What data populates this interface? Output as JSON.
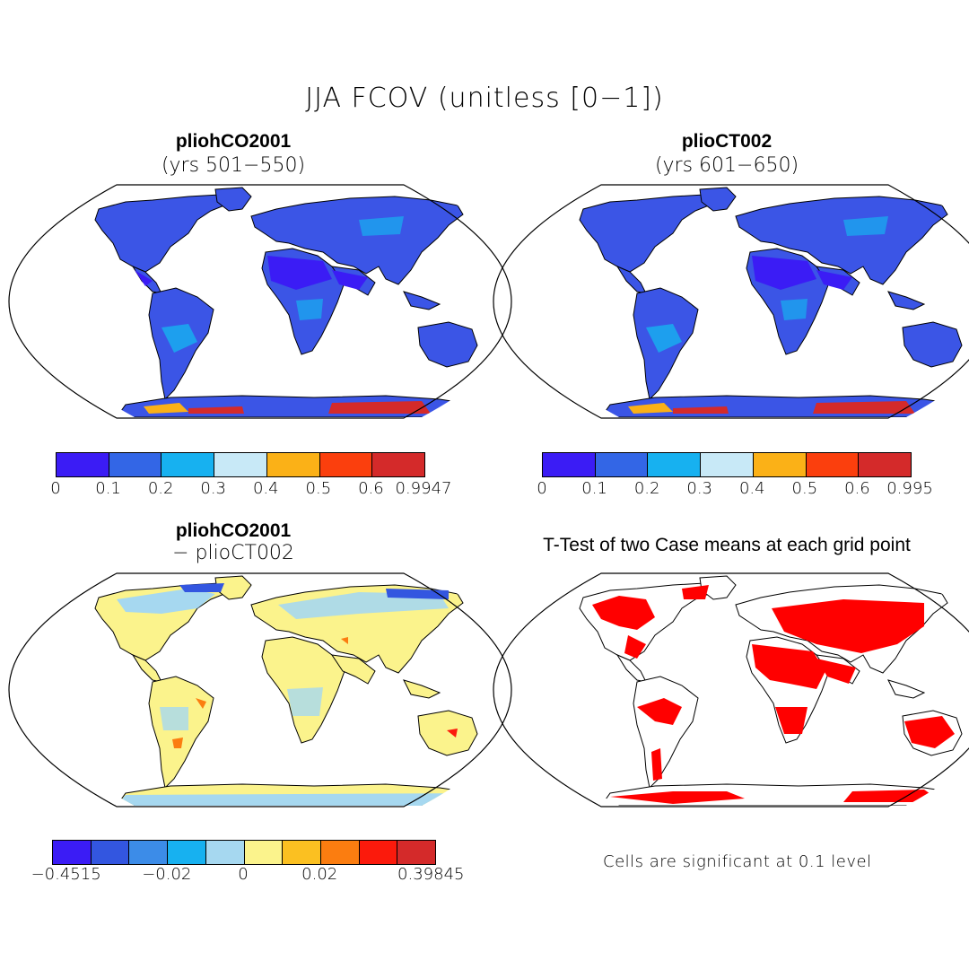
{
  "figure": {
    "title": "JJA FCOV (unitless [0−1])"
  },
  "panels": {
    "top_left": {
      "title": "pliohCO2001",
      "subtitle": "(yrs 501−550)"
    },
    "top_right": {
      "title": "plioCT002",
      "subtitle": "(yrs 601−650)"
    },
    "bottom_left": {
      "title": "pliohCO2001",
      "subtitle": "− plioCT002"
    },
    "bottom_right": {
      "title": "T-Test of two Case means at each grid point"
    }
  },
  "colorbars": {
    "top_left": {
      "colors": [
        "#3b1cf5",
        "#3366e6",
        "#17b1f0",
        "#c8e9f7",
        "#fbb117",
        "#fb3f0d",
        "#d42a2a"
      ],
      "labels": [
        "0",
        "0.1",
        "0.2",
        "0.3",
        "0.4",
        "0.5",
        "0.6",
        "0.9947"
      ]
    },
    "top_right": {
      "colors": [
        "#3b1cf5",
        "#3366e6",
        "#17b1f0",
        "#c8e9f7",
        "#fbb117",
        "#fb3f0d",
        "#d42a2a"
      ],
      "labels": [
        "0",
        "0.1",
        "0.2",
        "0.3",
        "0.4",
        "0.5",
        "0.6",
        "0.995"
      ]
    },
    "bottom_left": {
      "colors": [
        "#3b1cf5",
        "#3356e0",
        "#3c8ce8",
        "#17b1f0",
        "#a6d8f0",
        "#fbf38c",
        "#fbc021",
        "#fb7d10",
        "#fb1a0c",
        "#d42a2a"
      ],
      "labels": [
        "−0.4515",
        "−0.02",
        "0",
        "0.02",
        "0.39845"
      ]
    }
  },
  "significance_note": "Cells are significant at 0.1 level",
  "colors": {
    "land_low": "#3b55e6",
    "land_dark": "#3b1cf5",
    "ice_high": "#d42a2a",
    "diff_land": "#fbf38c",
    "diff_cool": "#a6d8f0",
    "ttest": "#ff0000"
  }
}
